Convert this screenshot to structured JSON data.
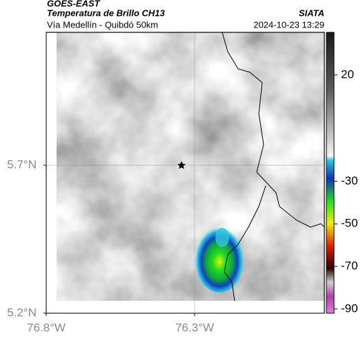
{
  "header": {
    "source": "GOES-EAST",
    "product": "Temperatura de Brillo CH13",
    "region": "Vía Medellín - Quibdó 50km",
    "agency": "SIATA",
    "timestamp": "2024-10-23 13:29"
  },
  "map": {
    "xlim": [
      -76.8,
      -75.863
    ],
    "ylim": [
      5.2,
      6.149
    ],
    "xticks": [
      {
        "value": -76.8,
        "label": "76.8°W"
      },
      {
        "value": -76.3,
        "label": "76.3°W"
      }
    ],
    "yticks": [
      {
        "value": 5.2,
        "label": "5.2°N"
      },
      {
        "value": 5.7,
        "label": "5.7°N"
      }
    ],
    "grid": true
  },
  "colorbar": {
    "lim": [
      -92,
      40
    ],
    "ticks": [
      20,
      -30,
      -50,
      -70,
      -90
    ]
  }
}
